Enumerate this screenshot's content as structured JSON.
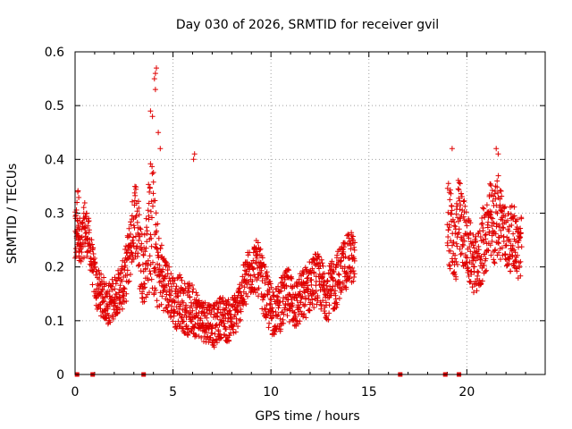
{
  "chart_data": {
    "type": "scatter",
    "title": "Day 030 of 2026, SRMTID for receiver gvil",
    "xlabel": "GPS time / hours",
    "ylabel": "SRMTID / TECUs",
    "xlim": [
      0,
      24
    ],
    "ylim": [
      0,
      0.6
    ],
    "x_ticks": [
      "0",
      "5",
      "10",
      "15",
      "20"
    ],
    "y_ticks": [
      "0",
      "0.1",
      "0.2",
      "0.3",
      "0.4",
      "0.5",
      "0.6"
    ],
    "x_tick_values": [
      0,
      5,
      10,
      15,
      20
    ],
    "y_tick_values": [
      0,
      0.1,
      0.2,
      0.3,
      0.4,
      0.5,
      0.6
    ],
    "grid": true,
    "marker_color": "#e00000",
    "zero_markers_x": [
      0.1,
      0.9,
      3.5,
      16.6,
      18.9,
      19.6
    ],
    "series": [
      {
        "name": "SRMTID",
        "marker": "plus",
        "segments": [
          {
            "x": [
              0.0,
              0.15,
              0.3,
              0.5,
              0.7,
              0.9,
              1.1,
              1.3,
              1.5,
              1.7,
              1.9,
              2.1,
              2.3,
              2.5,
              2.7,
              2.9,
              3.1,
              3.3,
              3.5,
              3.7,
              3.9,
              4.1,
              4.3,
              4.5,
              4.7,
              4.9,
              5.1,
              5.3,
              5.5,
              5.7,
              5.9,
              6.1,
              6.3,
              6.5,
              6.7,
              6.9,
              7.1,
              7.3,
              7.5,
              7.7,
              7.9,
              8.1,
              8.3,
              8.5,
              8.7,
              8.9,
              9.1,
              9.3,
              9.5,
              9.7,
              9.9,
              10.1,
              10.3,
              10.5,
              10.7,
              10.9,
              11.1,
              11.3,
              11.5,
              11.7,
              11.9,
              12.1,
              12.3,
              12.5,
              12.7,
              12.9,
              13.1,
              13.3,
              13.5,
              13.7,
              13.9,
              14.1,
              14.3
            ],
            "y": [
              0.24,
              0.3,
              0.22,
              0.28,
              0.25,
              0.2,
              0.16,
              0.15,
              0.14,
              0.13,
              0.14,
              0.15,
              0.16,
              0.17,
              0.21,
              0.26,
              0.3,
              0.23,
              0.19,
              0.24,
              0.3,
              0.22,
              0.19,
              0.18,
              0.16,
              0.15,
              0.13,
              0.14,
              0.13,
              0.12,
              0.12,
              0.12,
              0.11,
              0.1,
              0.1,
              0.1,
              0.09,
              0.1,
              0.11,
              0.1,
              0.1,
              0.11,
              0.12,
              0.15,
              0.17,
              0.19,
              0.2,
              0.2,
              0.18,
              0.15,
              0.13,
              0.12,
              0.12,
              0.13,
              0.14,
              0.15,
              0.14,
              0.13,
              0.14,
              0.15,
              0.16,
              0.17,
              0.18,
              0.17,
              0.16,
              0.15,
              0.16,
              0.17,
              0.19,
              0.2,
              0.21,
              0.22,
              0.2
            ],
            "spread": [
              0.06,
              0.06,
              0.05,
              0.05,
              0.04,
              0.04,
              0.04,
              0.04,
              0.04,
              0.04,
              0.04,
              0.04,
              0.04,
              0.05,
              0.06,
              0.06,
              0.08,
              0.08,
              0.06,
              0.1,
              0.14,
              0.1,
              0.07,
              0.06,
              0.05,
              0.05,
              0.05,
              0.05,
              0.05,
              0.05,
              0.05,
              0.05,
              0.04,
              0.04,
              0.04,
              0.04,
              0.04,
              0.04,
              0.04,
              0.04,
              0.04,
              0.04,
              0.04,
              0.04,
              0.05,
              0.05,
              0.05,
              0.05,
              0.05,
              0.05,
              0.05,
              0.05,
              0.04,
              0.05,
              0.05,
              0.05,
              0.05,
              0.05,
              0.05,
              0.05,
              0.05,
              0.05,
              0.05,
              0.05,
              0.05,
              0.05,
              0.05,
              0.05,
              0.05,
              0.05,
              0.05,
              0.05,
              0.05
            ]
          },
          {
            "x": [
              19.0,
              19.2,
              19.4,
              19.6,
              19.8,
              20.0,
              20.2,
              20.4,
              20.6,
              20.8,
              21.0,
              21.2,
              21.4,
              21.6,
              21.8,
              22.0,
              22.2,
              22.4,
              22.6,
              22.8
            ],
            "y": [
              0.3,
              0.26,
              0.22,
              0.3,
              0.27,
              0.24,
              0.22,
              0.2,
              0.21,
              0.24,
              0.26,
              0.28,
              0.27,
              0.3,
              0.28,
              0.25,
              0.25,
              0.26,
              0.23,
              0.24
            ],
            "spread": [
              0.08,
              0.08,
              0.06,
              0.08,
              0.07,
              0.06,
              0.06,
              0.05,
              0.06,
              0.07,
              0.07,
              0.08,
              0.07,
              0.08,
              0.07,
              0.06,
              0.06,
              0.06,
              0.06,
              0.06
            ]
          }
        ],
        "peaks": [
          {
            "x": 3.85,
            "y": 0.49
          },
          {
            "x": 3.95,
            "y": 0.48
          },
          {
            "x": 4.05,
            "y": 0.55
          },
          {
            "x": 4.1,
            "y": 0.56
          },
          {
            "x": 4.15,
            "y": 0.57
          },
          {
            "x": 4.1,
            "y": 0.53
          },
          {
            "x": 4.25,
            "y": 0.45
          },
          {
            "x": 4.35,
            "y": 0.42
          },
          {
            "x": 6.05,
            "y": 0.4
          },
          {
            "x": 6.1,
            "y": 0.41
          },
          {
            "x": 19.25,
            "y": 0.42
          },
          {
            "x": 21.5,
            "y": 0.42
          },
          {
            "x": 21.6,
            "y": 0.41
          }
        ]
      }
    ]
  }
}
